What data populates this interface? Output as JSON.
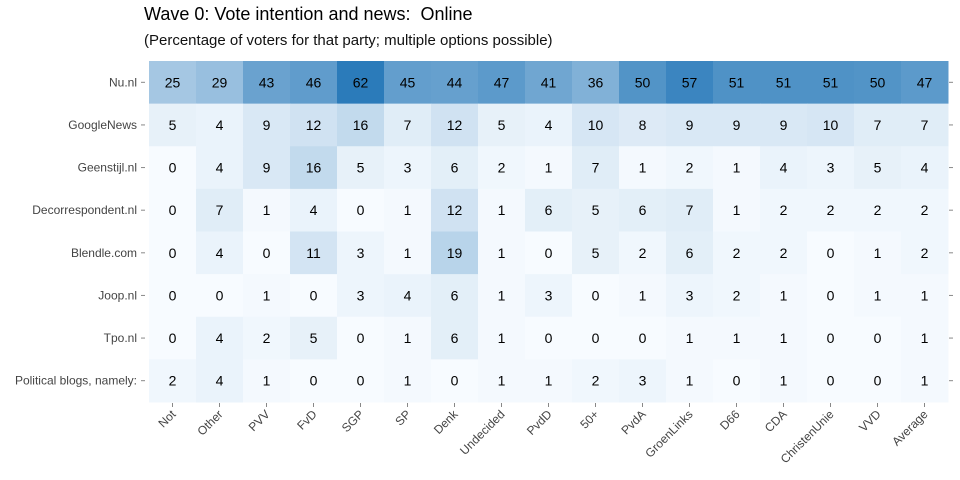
{
  "chart_data": {
    "type": "heatmap",
    "title": "Wave 0: Vote intention and news:  Online",
    "subtitle": "(Percentage of voters for that party; multiple options possible)",
    "xlabel": "",
    "ylabel": "",
    "x_categories": [
      "Not",
      "Other",
      "PVV",
      "FvD",
      "SGP",
      "SP",
      "Denk",
      "Undecided",
      "PvdD",
      "50+",
      "PvdA",
      "GroenLinks",
      "D66",
      "CDA",
      "ChristenUnie",
      "VVD",
      "Average"
    ],
    "y_categories": [
      "Nu.nl",
      "GoogleNews",
      "Geenstijl.nl",
      "Decorrespondent.nl",
      "Blendle.com",
      "Joop.nl",
      "Tpo.nl",
      "Political blogs, namely:"
    ],
    "values": [
      [
        25,
        29,
        43,
        46,
        62,
        45,
        44,
        47,
        41,
        36,
        50,
        57,
        51,
        51,
        51,
        50,
        47
      ],
      [
        5,
        4,
        9,
        12,
        16,
        7,
        12,
        5,
        4,
        10,
        8,
        9,
        9,
        9,
        10,
        7,
        7
      ],
      [
        0,
        4,
        9,
        16,
        5,
        3,
        6,
        2,
        1,
        7,
        1,
        2,
        1,
        4,
        3,
        5,
        4
      ],
      [
        0,
        7,
        1,
        4,
        0,
        1,
        12,
        1,
        6,
        5,
        6,
        7,
        1,
        2,
        2,
        2,
        2
      ],
      [
        0,
        4,
        0,
        11,
        3,
        1,
        19,
        1,
        0,
        5,
        2,
        6,
        2,
        2,
        0,
        1,
        2
      ],
      [
        0,
        0,
        1,
        0,
        3,
        4,
        6,
        1,
        3,
        0,
        1,
        3,
        2,
        1,
        0,
        1,
        1
      ],
      [
        0,
        4,
        2,
        5,
        0,
        1,
        6,
        1,
        0,
        0,
        0,
        1,
        1,
        1,
        0,
        0,
        1
      ],
      [
        2,
        4,
        1,
        0,
        0,
        1,
        0,
        1,
        1,
        2,
        3,
        1,
        0,
        1,
        0,
        0,
        1
      ]
    ],
    "color_scale": {
      "low": "#f7fbff",
      "high": "#2b7bba",
      "domain": [
        0,
        62
      ]
    },
    "grid": false,
    "legend": "none"
  }
}
